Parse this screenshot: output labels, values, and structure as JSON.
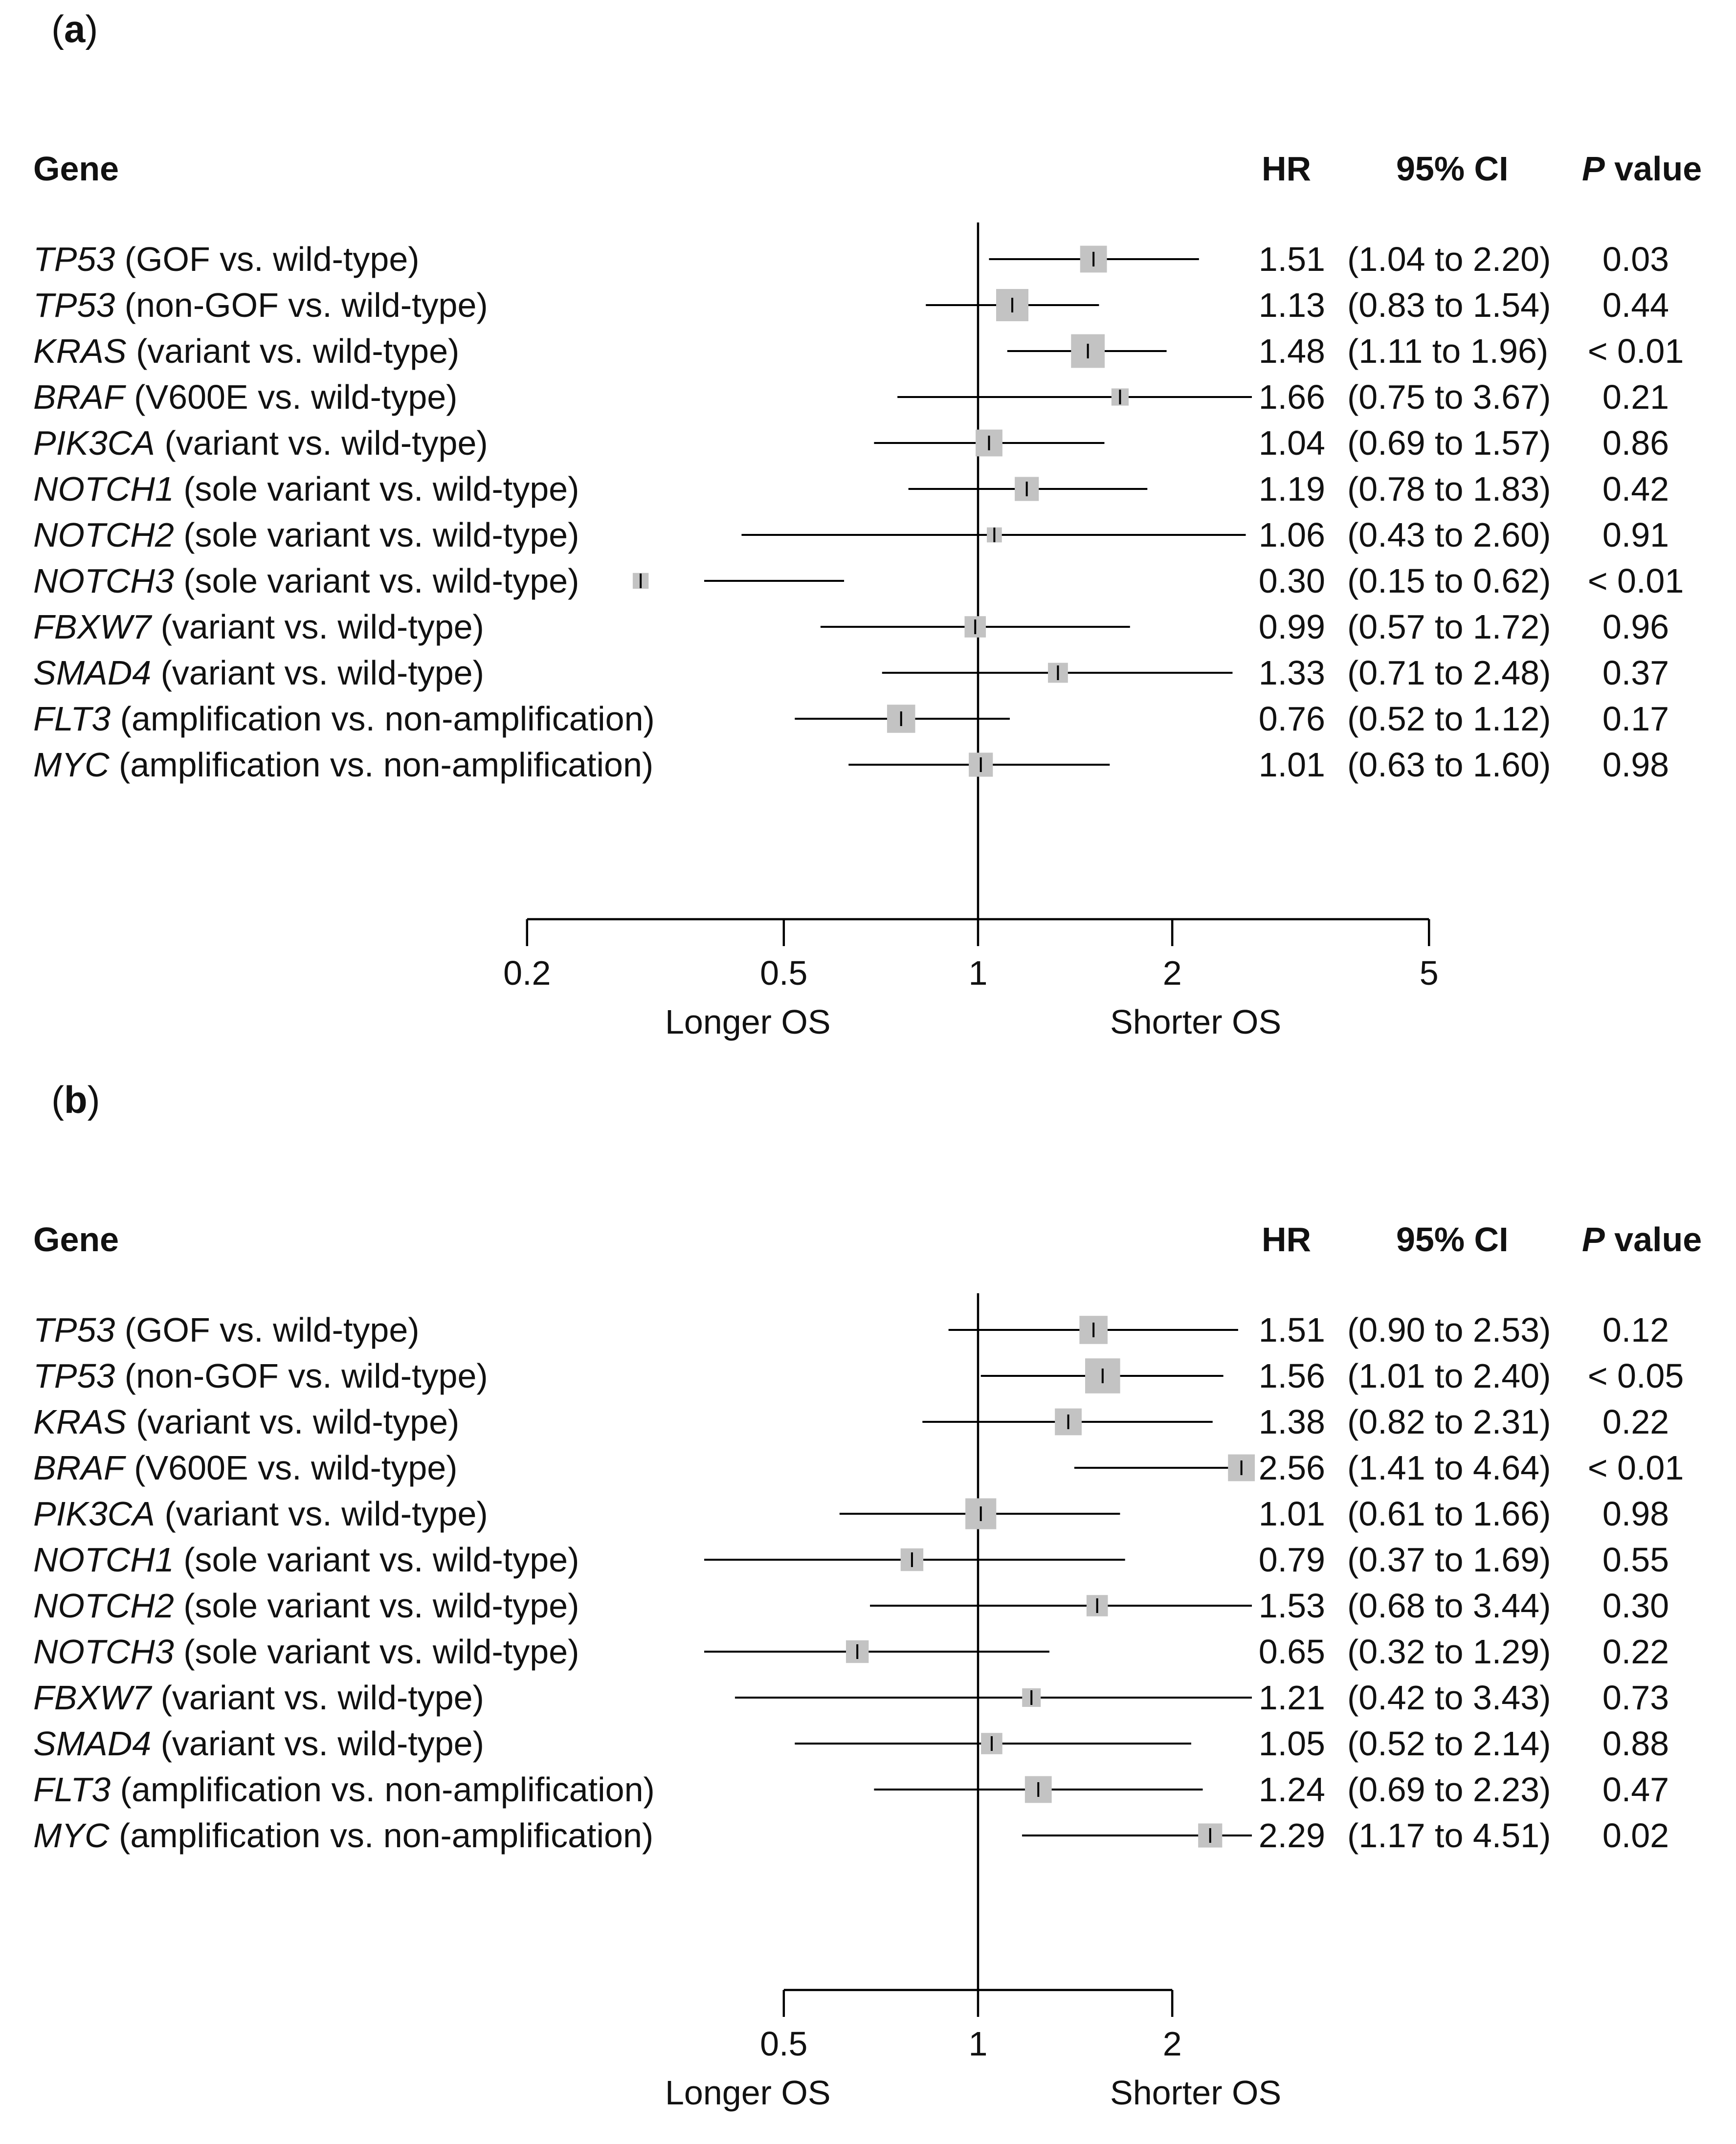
{
  "colors": {
    "box": "#c3c3c3",
    "line": "#000000"
  },
  "panels": [
    {
      "label": "a",
      "headers": {
        "gene": "Gene",
        "hr": "HR",
        "ci": "95% CI",
        "p_italic": "P",
        "p_rest": " value"
      },
      "rows": [
        {
          "gene": "TP53",
          "desc": " (GOF vs. wild-type)",
          "hr": "1.51",
          "ci": "(1.04 to 2.20)",
          "p": "0.03"
        },
        {
          "gene": "TP53",
          "desc": " (non-GOF vs. wild-type)",
          "hr": "1.13",
          "ci": "(0.83 to 1.54)",
          "p": "0.44"
        },
        {
          "gene": "KRAS",
          "desc": " (variant vs. wild-type)",
          "hr": "1.48",
          "ci": "(1.11 to 1.96)",
          "p": "< 0.01"
        },
        {
          "gene": "BRAF",
          "desc": " (V600E vs. wild-type)",
          "hr": "1.66",
          "ci": "(0.75 to 3.67)",
          "p": "0.21"
        },
        {
          "gene": "PIK3CA",
          "desc": " (variant vs. wild-type)",
          "hr": "1.04",
          "ci": "(0.69 to 1.57)",
          "p": "0.86"
        },
        {
          "gene": "NOTCH1",
          "desc": " (sole variant vs. wild-type)",
          "hr": "1.19",
          "ci": "(0.78 to 1.83)",
          "p": "0.42"
        },
        {
          "gene": "NOTCH2",
          "desc": " (sole variant vs. wild-type)",
          "hr": "1.06",
          "ci": "(0.43 to 2.60)",
          "p": "0.91"
        },
        {
          "gene": "NOTCH3",
          "desc": " (sole variant vs. wild-type)",
          "hr": "0.30",
          "ci": "(0.15 to 0.62)",
          "p": "< 0.01"
        },
        {
          "gene": "FBXW7",
          "desc": " (variant vs. wild-type)",
          "hr": "0.99",
          "ci": "(0.57 to 1.72)",
          "p": "0.96"
        },
        {
          "gene": "SMAD4",
          "desc": " (variant vs. wild-type)",
          "hr": "1.33",
          "ci": "(0.71 to 2.48)",
          "p": "0.37"
        },
        {
          "gene": "FLT3",
          "desc": " (amplification vs. non-amplification)",
          "hr": "0.76",
          "ci": "(0.52 to 1.12)",
          "p": "0.17"
        },
        {
          "gene": "MYC",
          "desc": " (amplification vs. non-amplification)",
          "hr": "1.01",
          "ci": "(0.63 to 1.60)",
          "p": "0.98"
        }
      ],
      "axis": {
        "ticks": [
          "0.2",
          "0.5",
          "1",
          "2",
          "5"
        ],
        "left_label": "Longer OS",
        "right_label": "Shorter OS"
      }
    },
    {
      "label": "b",
      "headers": {
        "gene": "Gene",
        "hr": "HR",
        "ci": "95% CI",
        "p_italic": "P",
        "p_rest": " value"
      },
      "rows": [
        {
          "gene": "TP53",
          "desc": " (GOF vs. wild-type)",
          "hr": "1.51",
          "ci": "(0.90 to 2.53)",
          "p": "0.12"
        },
        {
          "gene": "TP53",
          "desc": " (non-GOF vs. wild-type)",
          "hr": "1.56",
          "ci": "(1.01 to 2.40)",
          "p": "< 0.05"
        },
        {
          "gene": "KRAS",
          "desc": " (variant vs. wild-type)",
          "hr": "1.38",
          "ci": "(0.82 to 2.31)",
          "p": "0.22"
        },
        {
          "gene": "BRAF",
          "desc": " (V600E vs. wild-type)",
          "hr": "2.56",
          "ci": "(1.41 to 4.64)",
          "p": "< 0.01"
        },
        {
          "gene": "PIK3CA",
          "desc": " (variant vs. wild-type)",
          "hr": "1.01",
          "ci": "(0.61 to 1.66)",
          "p": "0.98"
        },
        {
          "gene": "NOTCH1",
          "desc": " (sole variant vs. wild-type)",
          "hr": "0.79",
          "ci": "(0.37 to 1.69)",
          "p": "0.55"
        },
        {
          "gene": "NOTCH2",
          "desc": " (sole variant vs. wild-type)",
          "hr": "1.53",
          "ci": "(0.68 to 3.44)",
          "p": "0.30"
        },
        {
          "gene": "NOTCH3",
          "desc": " (sole variant vs. wild-type)",
          "hr": "0.65",
          "ci": "(0.32 to 1.29)",
          "p": "0.22"
        },
        {
          "gene": "FBXW7",
          "desc": " (variant vs. wild-type)",
          "hr": "1.21",
          "ci": "(0.42 to 3.43)",
          "p": "0.73"
        },
        {
          "gene": "SMAD4",
          "desc": " (variant vs. wild-type)",
          "hr": "1.05",
          "ci": "(0.52 to 2.14)",
          "p": "0.88"
        },
        {
          "gene": "FLT3",
          "desc": " (amplification vs. non-amplification)",
          "hr": "1.24",
          "ci": "(0.69 to 2.23)",
          "p": "0.47"
        },
        {
          "gene": "MYC",
          "desc": " (amplification vs. non-amplification)",
          "hr": "2.29",
          "ci": "(1.17 to 4.51)",
          "p": "0.02"
        }
      ],
      "axis": {
        "ticks": [
          "0.5",
          "1",
          "2"
        ],
        "left_label": "Longer OS",
        "right_label": "Shorter OS"
      }
    }
  ],
  "chart_data": [
    {
      "type": "forest",
      "x_scale": "log",
      "xlim": [
        0.2,
        5
      ],
      "reference_line": 1,
      "xticks": [
        0.2,
        0.5,
        1,
        2,
        5
      ],
      "marker_weights": [
        0.55,
        0.75,
        0.8,
        0.2,
        0.55,
        0.45,
        0.12,
        0.15,
        0.35,
        0.3,
        0.6,
        0.45
      ],
      "series": [
        {
          "hr": 1.51,
          "lo": 1.04,
          "hi": 2.2
        },
        {
          "hr": 1.13,
          "lo": 0.83,
          "hi": 1.54
        },
        {
          "hr": 1.48,
          "lo": 1.11,
          "hi": 1.96
        },
        {
          "hr": 1.66,
          "lo": 0.75,
          "hi": 3.67
        },
        {
          "hr": 1.04,
          "lo": 0.69,
          "hi": 1.57
        },
        {
          "hr": 1.19,
          "lo": 0.78,
          "hi": 1.83
        },
        {
          "hr": 1.06,
          "lo": 0.43,
          "hi": 2.6
        },
        {
          "hr": 0.3,
          "lo": 0.15,
          "hi": 0.62
        },
        {
          "hr": 0.99,
          "lo": 0.57,
          "hi": 1.72
        },
        {
          "hr": 1.33,
          "lo": 0.71,
          "hi": 2.48
        },
        {
          "hr": 0.76,
          "lo": 0.52,
          "hi": 1.12
        },
        {
          "hr": 1.01,
          "lo": 0.63,
          "hi": 1.6
        }
      ]
    },
    {
      "type": "forest",
      "x_scale": "log",
      "xlim": [
        0.5,
        2
      ],
      "reference_line": 1,
      "xticks": [
        0.5,
        1,
        2
      ],
      "marker_weights": [
        0.6,
        0.85,
        0.55,
        0.55,
        0.7,
        0.4,
        0.35,
        0.4,
        0.25,
        0.35,
        0.55,
        0.45
      ],
      "series": [
        {
          "hr": 1.51,
          "lo": 0.9,
          "hi": 2.53
        },
        {
          "hr": 1.56,
          "lo": 1.01,
          "hi": 2.4
        },
        {
          "hr": 1.38,
          "lo": 0.82,
          "hi": 2.31
        },
        {
          "hr": 2.56,
          "lo": 1.41,
          "hi": 4.64
        },
        {
          "hr": 1.01,
          "lo": 0.61,
          "hi": 1.66
        },
        {
          "hr": 0.79,
          "lo": 0.37,
          "hi": 1.69
        },
        {
          "hr": 1.53,
          "lo": 0.68,
          "hi": 3.44
        },
        {
          "hr": 0.65,
          "lo": 0.32,
          "hi": 1.29
        },
        {
          "hr": 1.21,
          "lo": 0.42,
          "hi": 3.43
        },
        {
          "hr": 1.05,
          "lo": 0.52,
          "hi": 2.14
        },
        {
          "hr": 1.24,
          "lo": 0.69,
          "hi": 2.23
        },
        {
          "hr": 2.29,
          "lo": 1.17,
          "hi": 4.51
        }
      ]
    }
  ]
}
